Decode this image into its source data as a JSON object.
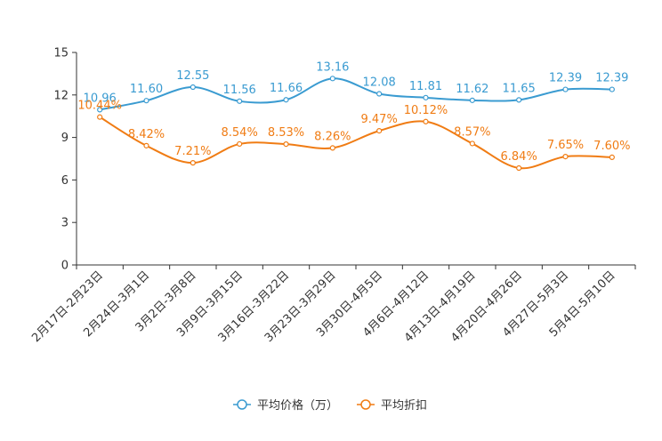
{
  "chart_data": {
    "type": "line",
    "categories": [
      "2月17日-2月23日",
      "2月24日-3月1日",
      "3月2日-3月8日",
      "3月9日-3月15日",
      "3月16日-3月22日",
      "3月23日-3月29日",
      "3月30日-4月5日",
      "4月6日-4月12日",
      "4月13日-4月19日",
      "4月20日-4月26日",
      "4月27日-5月3日",
      "5月4日-5月10日"
    ],
    "ylim": [
      0,
      15
    ],
    "yticks": [
      0,
      3,
      6,
      9,
      12,
      15
    ],
    "series": [
      {
        "name": "平均价格（万）",
        "color": "#3a9bd1",
        "values": [
          10.96,
          11.6,
          12.55,
          11.56,
          11.66,
          13.16,
          12.08,
          11.81,
          11.62,
          11.65,
          12.39,
          12.39
        ],
        "labels": [
          "10.96",
          "11.60",
          "12.55",
          "11.56",
          "11.66",
          "13.16",
          "12.08",
          "11.81",
          "11.62",
          "11.65",
          "12.39",
          "12.39"
        ]
      },
      {
        "name": "平均折扣",
        "color": "#f07c14",
        "values": [
          10.44,
          8.42,
          7.21,
          8.54,
          8.53,
          8.26,
          9.47,
          10.12,
          8.57,
          6.84,
          7.65,
          7.6
        ],
        "labels": [
          "10.44%",
          "8.42%",
          "7.21%",
          "8.54%",
          "8.53%",
          "8.26%",
          "9.47%",
          "10.12%",
          "8.57%",
          "6.84%",
          "7.65%",
          "7.60%"
        ]
      }
    ],
    "legend_position": "bottom-center"
  }
}
